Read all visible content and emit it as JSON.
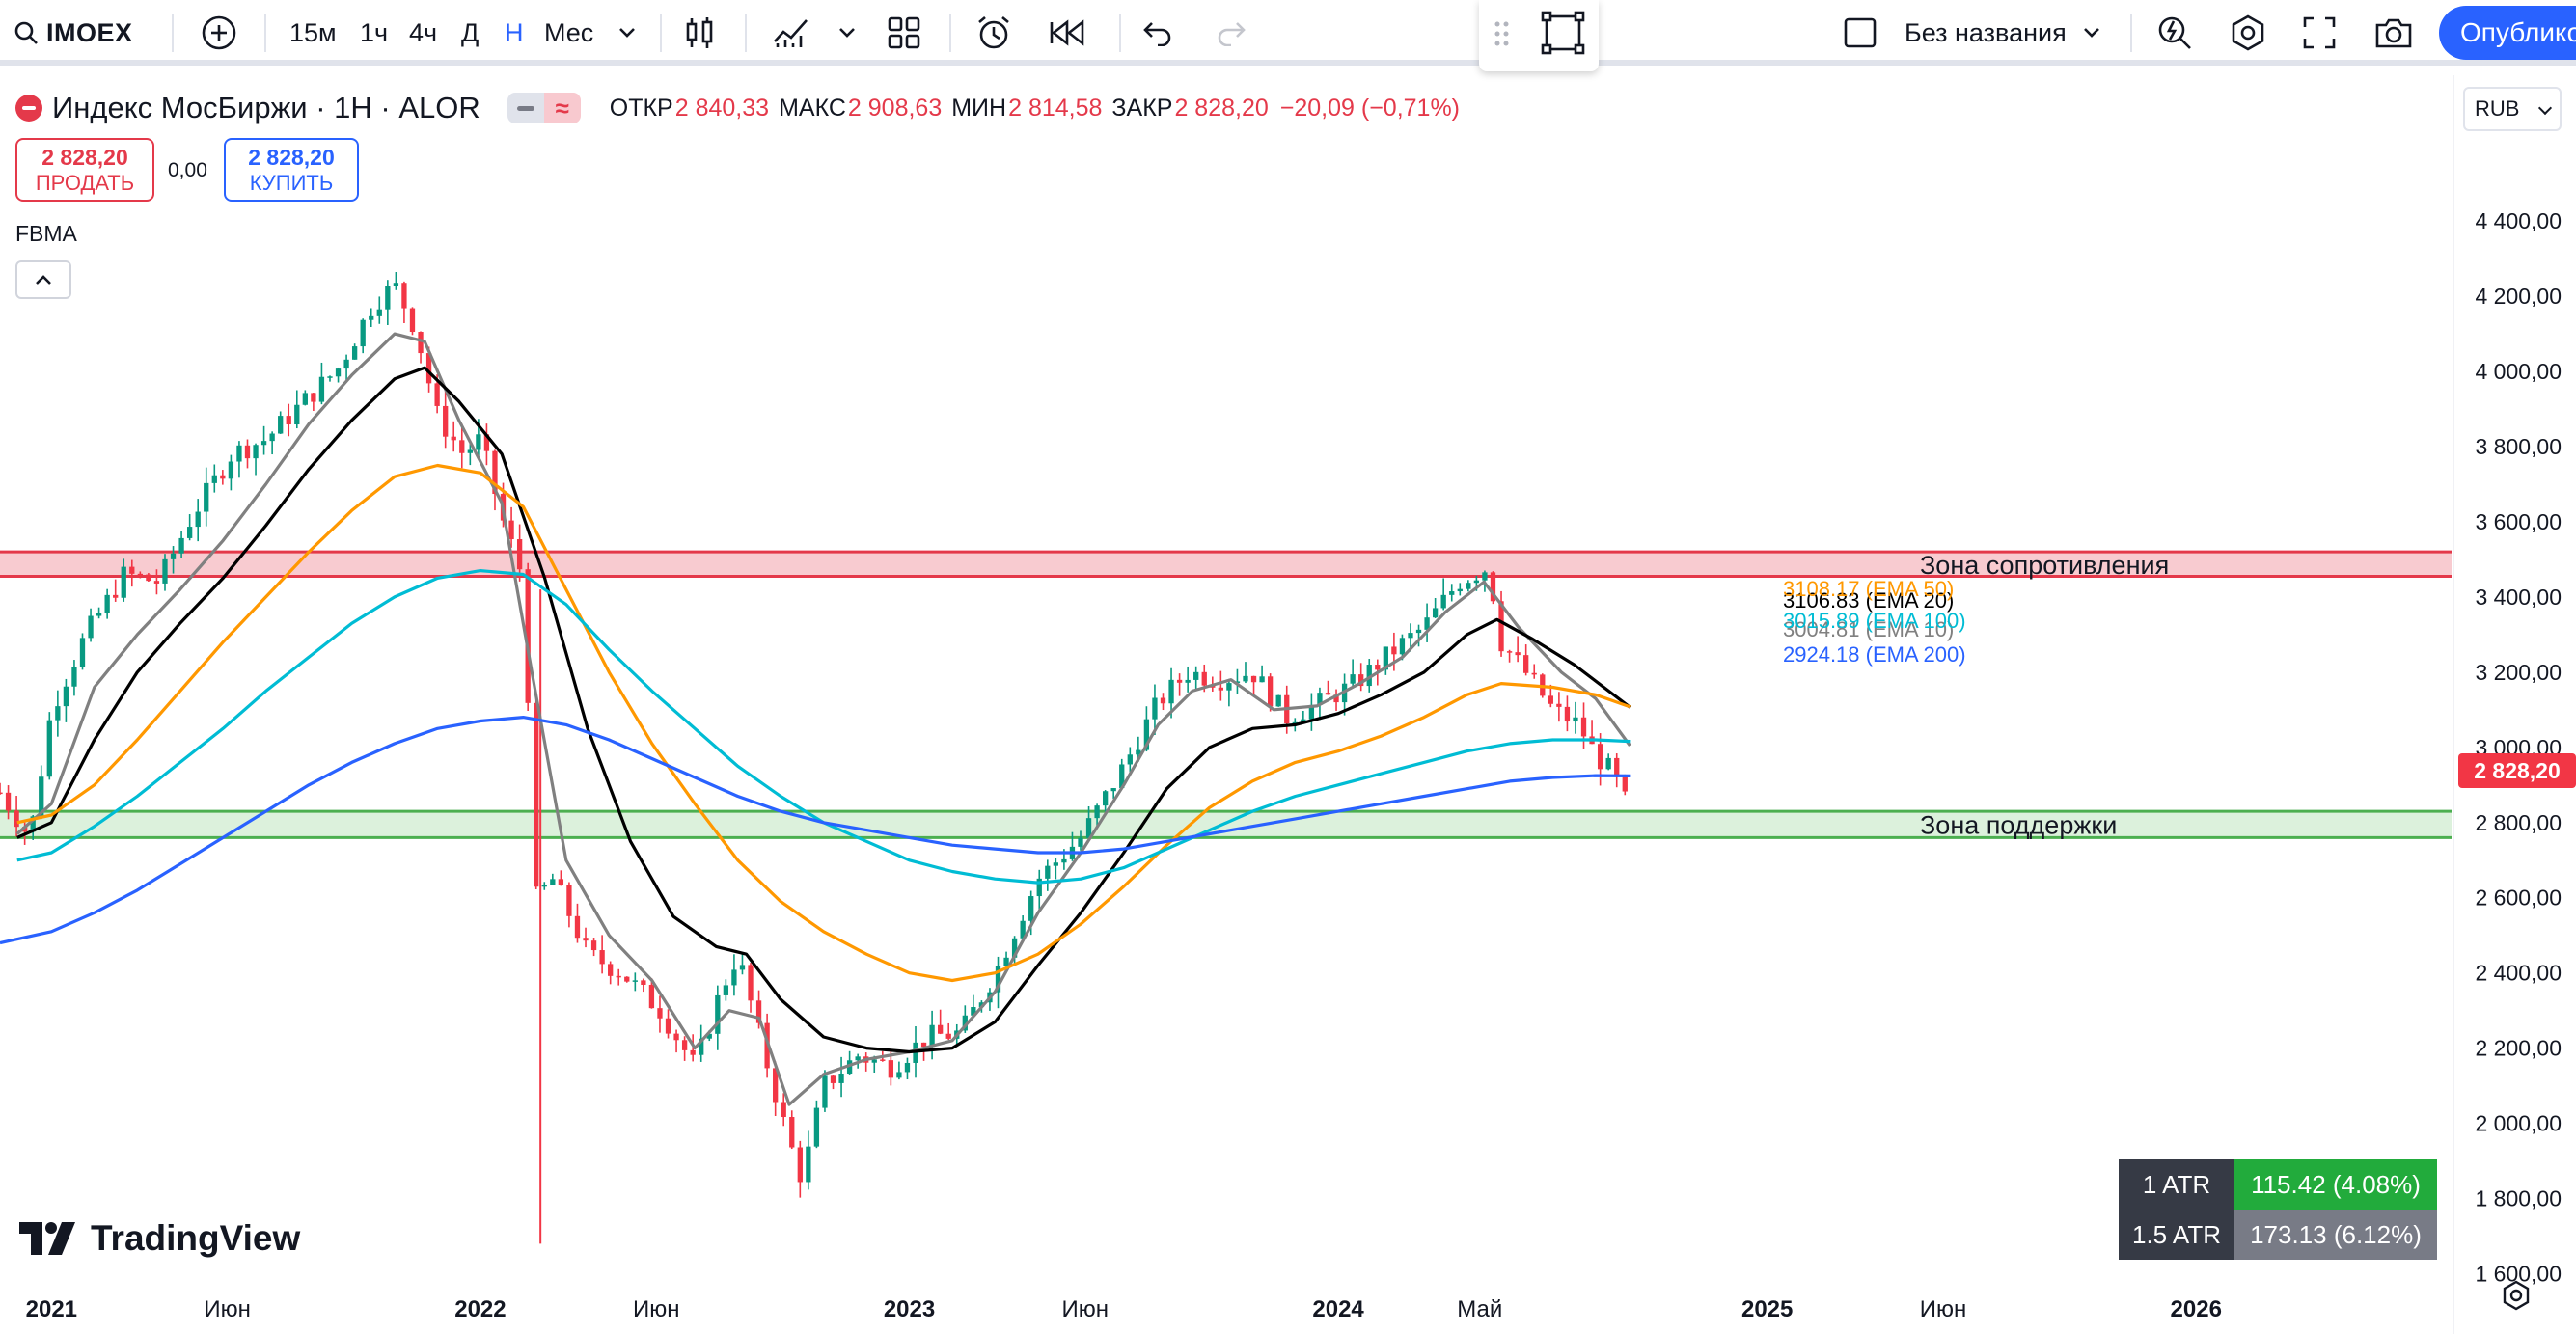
{
  "toolbar": {
    "symbol": "IMOEX",
    "intervals": [
      "15м",
      "1ч",
      "4ч",
      "Д",
      "Н",
      "Мес"
    ],
    "active_interval": "Н",
    "layout_name": "Без названия",
    "publish_label": "Опублико"
  },
  "legend": {
    "title": "Индекс МосБиржи · 1Н · ALOR",
    "open_label": "ОТКР",
    "open": "2 840,33",
    "high_label": "МАКС",
    "high": "2 908,63",
    "low_label": "МИН",
    "low": "2 814,58",
    "close_label": "ЗАКР",
    "close": "2 828,20",
    "change": "−20,09 (−0,71%)"
  },
  "trade": {
    "sell_price": "2 828,20",
    "sell_label": "ПРОДАТЬ",
    "spread": "0,00",
    "buy_price": "2 828,20",
    "buy_label": "КУПИТЬ"
  },
  "indicator_label": "FBMA",
  "currency": "RUB",
  "last_price_tag": "2 828,20",
  "atr": {
    "row1_label": "1 ATR",
    "row1_value": "115.42 (4.08%)",
    "row2_label": "1.5 ATR",
    "row2_value": "173.13 (6.12%)"
  },
  "brand": "TradingView",
  "colors": {
    "up": "#089981",
    "down": "#f23645",
    "ema10": "#808080",
    "ema20": "#000000",
    "ema50": "#ff9800",
    "ema100": "#00bcd4",
    "ema200": "#2962ff",
    "resistance_fill": "#f7c5cb",
    "resistance_line": "#e4394a",
    "support_fill": "#d8f0d8",
    "support_line": "#4caf50"
  },
  "chart_data": {
    "type": "line",
    "title": "Индекс МосБиржи · 1Н · ALOR",
    "y_range": [
      1550,
      4680
    ],
    "y_ticks": [
      1600,
      1800,
      2000,
      2200,
      2400,
      2600,
      2800,
      3000,
      3200,
      3400,
      3600,
      3800,
      4000,
      4200,
      4400
    ],
    "y_tick_labels": [
      "1 600,00",
      "1 800,00",
      "2 000,00",
      "2 200,00",
      "2 400,00",
      "2 600,00",
      "2 800,00",
      "3 000,00",
      "3 200,00",
      "3 400,00",
      "3 600,00",
      "3 800,00",
      "4 000,00",
      "4 200,00",
      "4 400,00"
    ],
    "x_range": [
      2020.88,
      2026.6
    ],
    "x_ticks": [
      {
        "t": 2021.0,
        "label": "2021",
        "major": true
      },
      {
        "t": 2021.41,
        "label": "Июн",
        "major": false
      },
      {
        "t": 2022.0,
        "label": "2022",
        "major": true
      },
      {
        "t": 2022.41,
        "label": "Июн",
        "major": false
      },
      {
        "t": 2023.0,
        "label": "2023",
        "major": true
      },
      {
        "t": 2023.41,
        "label": "Июн",
        "major": false
      },
      {
        "t": 2024.0,
        "label": "2024",
        "major": true
      },
      {
        "t": 2024.33,
        "label": "Май",
        "major": false
      },
      {
        "t": 2025.0,
        "label": "2025",
        "major": true
      },
      {
        "t": 2025.41,
        "label": "Июн",
        "major": false
      },
      {
        "t": 2026.0,
        "label": "2026",
        "major": true
      }
    ],
    "price_path": [
      [
        2020.88,
        2880
      ],
      [
        2020.95,
        2760
      ],
      [
        2021.0,
        3100
      ],
      [
        2021.08,
        3300
      ],
      [
        2021.17,
        3460
      ],
      [
        2021.25,
        3440
      ],
      [
        2021.33,
        3620
      ],
      [
        2021.42,
        3780
      ],
      [
        2021.5,
        3820
      ],
      [
        2021.58,
        3910
      ],
      [
        2021.67,
        4010
      ],
      [
        2021.75,
        4180
      ],
      [
        2021.8,
        4230
      ],
      [
        2021.85,
        4110
      ],
      [
        2021.9,
        3880
      ],
      [
        2021.96,
        3780
      ],
      [
        2022.0,
        3820
      ],
      [
        2022.05,
        3610
      ],
      [
        2022.1,
        3450
      ],
      [
        2022.13,
        2600
      ],
      [
        2022.17,
        2650
      ],
      [
        2022.25,
        2450
      ],
      [
        2022.33,
        2400
      ],
      [
        2022.42,
        2300
      ],
      [
        2022.5,
        2150
      ],
      [
        2022.56,
        2350
      ],
      [
        2022.6,
        2450
      ],
      [
        2022.67,
        2150
      ],
      [
        2022.72,
        1950
      ],
      [
        2022.75,
        1850
      ],
      [
        2022.8,
        2100
      ],
      [
        2022.88,
        2180
      ],
      [
        2022.96,
        2150
      ],
      [
        2023.04,
        2230
      ],
      [
        2023.12,
        2240
      ],
      [
        2023.2,
        2400
      ],
      [
        2023.3,
        2650
      ],
      [
        2023.4,
        2760
      ],
      [
        2023.5,
        2950
      ],
      [
        2023.58,
        3120
      ],
      [
        2023.65,
        3200
      ],
      [
        2023.72,
        3180
      ],
      [
        2023.8,
        3200
      ],
      [
        2023.88,
        3080
      ],
      [
        2023.96,
        3120
      ],
      [
        2024.04,
        3170
      ],
      [
        2024.12,
        3250
      ],
      [
        2024.2,
        3320
      ],
      [
        2024.28,
        3440
      ],
      [
        2024.35,
        3480
      ],
      [
        2024.38,
        3280
      ],
      [
        2024.45,
        3180
      ],
      [
        2024.5,
        3100
      ],
      [
        2024.56,
        3060
      ],
      [
        2024.6,
        2980
      ],
      [
        2024.64,
        2930
      ],
      [
        2024.68,
        2828.2
      ]
    ],
    "series": [
      {
        "name": "EMA 10",
        "color": "#808080",
        "last_value": 3004.81,
        "label": "3004.81 (EMA 10)",
        "points": [
          [
            2020.92,
            2770
          ],
          [
            2021.0,
            2850
          ],
          [
            2021.1,
            3160
          ],
          [
            2021.2,
            3300
          ],
          [
            2021.3,
            3420
          ],
          [
            2021.4,
            3550
          ],
          [
            2021.5,
            3700
          ],
          [
            2021.6,
            3860
          ],
          [
            2021.7,
            3990
          ],
          [
            2021.8,
            4100
          ],
          [
            2021.87,
            4080
          ],
          [
            2021.95,
            3870
          ],
          [
            2022.05,
            3650
          ],
          [
            2022.12,
            3200
          ],
          [
            2022.2,
            2700
          ],
          [
            2022.3,
            2500
          ],
          [
            2022.4,
            2380
          ],
          [
            2022.5,
            2200
          ],
          [
            2022.58,
            2300
          ],
          [
            2022.65,
            2280
          ],
          [
            2022.72,
            2050
          ],
          [
            2022.8,
            2130
          ],
          [
            2022.9,
            2170
          ],
          [
            2023.0,
            2190
          ],
          [
            2023.1,
            2220
          ],
          [
            2023.2,
            2350
          ],
          [
            2023.3,
            2560
          ],
          [
            2023.4,
            2720
          ],
          [
            2023.5,
            2900
          ],
          [
            2023.58,
            3060
          ],
          [
            2023.66,
            3150
          ],
          [
            2023.75,
            3180
          ],
          [
            2023.85,
            3100
          ],
          [
            2023.95,
            3110
          ],
          [
            2024.05,
            3170
          ],
          [
            2024.15,
            3240
          ],
          [
            2024.25,
            3360
          ],
          [
            2024.34,
            3440
          ],
          [
            2024.42,
            3320
          ],
          [
            2024.52,
            3200
          ],
          [
            2024.6,
            3130
          ],
          [
            2024.68,
            3004.81
          ]
        ]
      },
      {
        "name": "EMA 20",
        "color": "#000000",
        "last_value": 3106.83,
        "label": "3106.83 (EMA 20)",
        "points": [
          [
            2020.92,
            2760
          ],
          [
            2021.0,
            2800
          ],
          [
            2021.1,
            3020
          ],
          [
            2021.2,
            3200
          ],
          [
            2021.3,
            3330
          ],
          [
            2021.4,
            3450
          ],
          [
            2021.5,
            3590
          ],
          [
            2021.6,
            3740
          ],
          [
            2021.7,
            3870
          ],
          [
            2021.8,
            3980
          ],
          [
            2021.87,
            4010
          ],
          [
            2021.95,
            3920
          ],
          [
            2022.05,
            3780
          ],
          [
            2022.15,
            3450
          ],
          [
            2022.25,
            3050
          ],
          [
            2022.35,
            2750
          ],
          [
            2022.45,
            2550
          ],
          [
            2022.55,
            2470
          ],
          [
            2022.62,
            2450
          ],
          [
            2022.7,
            2330
          ],
          [
            2022.8,
            2230
          ],
          [
            2022.9,
            2200
          ],
          [
            2023.0,
            2190
          ],
          [
            2023.1,
            2200
          ],
          [
            2023.2,
            2270
          ],
          [
            2023.3,
            2420
          ],
          [
            2023.4,
            2560
          ],
          [
            2023.5,
            2720
          ],
          [
            2023.6,
            2890
          ],
          [
            2023.7,
            3000
          ],
          [
            2023.8,
            3050
          ],
          [
            2023.9,
            3060
          ],
          [
            2024.0,
            3090
          ],
          [
            2024.1,
            3140
          ],
          [
            2024.2,
            3200
          ],
          [
            2024.3,
            3300
          ],
          [
            2024.37,
            3340
          ],
          [
            2024.45,
            3290
          ],
          [
            2024.55,
            3220
          ],
          [
            2024.68,
            3106.83
          ]
        ]
      },
      {
        "name": "EMA 50",
        "color": "#ff9800",
        "last_value": 3108.17,
        "label": "3108.17 (EMA 50)",
        "points": [
          [
            2020.92,
            2800
          ],
          [
            2021.0,
            2820
          ],
          [
            2021.1,
            2900
          ],
          [
            2021.2,
            3020
          ],
          [
            2021.3,
            3150
          ],
          [
            2021.4,
            3280
          ],
          [
            2021.5,
            3400
          ],
          [
            2021.6,
            3520
          ],
          [
            2021.7,
            3630
          ],
          [
            2021.8,
            3720
          ],
          [
            2021.9,
            3750
          ],
          [
            2022.0,
            3730
          ],
          [
            2022.1,
            3640
          ],
          [
            2022.2,
            3420
          ],
          [
            2022.3,
            3200
          ],
          [
            2022.4,
            3010
          ],
          [
            2022.5,
            2850
          ],
          [
            2022.6,
            2700
          ],
          [
            2022.7,
            2590
          ],
          [
            2022.8,
            2510
          ],
          [
            2022.9,
            2450
          ],
          [
            2023.0,
            2400
          ],
          [
            2023.1,
            2380
          ],
          [
            2023.2,
            2400
          ],
          [
            2023.3,
            2450
          ],
          [
            2023.4,
            2530
          ],
          [
            2023.5,
            2630
          ],
          [
            2023.6,
            2740
          ],
          [
            2023.7,
            2840
          ],
          [
            2023.8,
            2910
          ],
          [
            2023.9,
            2960
          ],
          [
            2024.0,
            2990
          ],
          [
            2024.1,
            3030
          ],
          [
            2024.2,
            3080
          ],
          [
            2024.3,
            3140
          ],
          [
            2024.38,
            3170
          ],
          [
            2024.5,
            3160
          ],
          [
            2024.6,
            3140
          ],
          [
            2024.68,
            3108.17
          ]
        ]
      },
      {
        "name": "EMA 100",
        "color": "#00bcd4",
        "last_value": 3015.89,
        "label": "3015.89 (EMA 100)",
        "points": [
          [
            2020.92,
            2700
          ],
          [
            2021.0,
            2720
          ],
          [
            2021.1,
            2790
          ],
          [
            2021.2,
            2870
          ],
          [
            2021.3,
            2960
          ],
          [
            2021.4,
            3050
          ],
          [
            2021.5,
            3150
          ],
          [
            2021.6,
            3240
          ],
          [
            2021.7,
            3330
          ],
          [
            2021.8,
            3400
          ],
          [
            2021.9,
            3450
          ],
          [
            2022.0,
            3470
          ],
          [
            2022.1,
            3460
          ],
          [
            2022.2,
            3380
          ],
          [
            2022.3,
            3260
          ],
          [
            2022.4,
            3150
          ],
          [
            2022.5,
            3050
          ],
          [
            2022.6,
            2950
          ],
          [
            2022.7,
            2870
          ],
          [
            2022.8,
            2800
          ],
          [
            2022.9,
            2750
          ],
          [
            2023.0,
            2700
          ],
          [
            2023.1,
            2670
          ],
          [
            2023.2,
            2650
          ],
          [
            2023.3,
            2640
          ],
          [
            2023.4,
            2650
          ],
          [
            2023.5,
            2680
          ],
          [
            2023.6,
            2730
          ],
          [
            2023.7,
            2780
          ],
          [
            2023.8,
            2830
          ],
          [
            2023.9,
            2870
          ],
          [
            2024.0,
            2900
          ],
          [
            2024.1,
            2930
          ],
          [
            2024.2,
            2960
          ],
          [
            2024.3,
            2990
          ],
          [
            2024.4,
            3010
          ],
          [
            2024.5,
            3020
          ],
          [
            2024.6,
            3020
          ],
          [
            2024.68,
            3015.89
          ]
        ]
      },
      {
        "name": "EMA 200",
        "color": "#2962ff",
        "last_value": 2924.18,
        "label": "2924.18 (EMA 200)",
        "points": [
          [
            2020.88,
            2480
          ],
          [
            2021.0,
            2510
          ],
          [
            2021.1,
            2560
          ],
          [
            2021.2,
            2620
          ],
          [
            2021.3,
            2690
          ],
          [
            2021.4,
            2760
          ],
          [
            2021.5,
            2830
          ],
          [
            2021.6,
            2900
          ],
          [
            2021.7,
            2960
          ],
          [
            2021.8,
            3010
          ],
          [
            2021.9,
            3050
          ],
          [
            2022.0,
            3070
          ],
          [
            2022.1,
            3080
          ],
          [
            2022.2,
            3060
          ],
          [
            2022.3,
            3020
          ],
          [
            2022.4,
            2970
          ],
          [
            2022.5,
            2920
          ],
          [
            2022.6,
            2870
          ],
          [
            2022.7,
            2830
          ],
          [
            2022.8,
            2800
          ],
          [
            2022.9,
            2780
          ],
          [
            2023.0,
            2760
          ],
          [
            2023.1,
            2740
          ],
          [
            2023.2,
            2730
          ],
          [
            2023.3,
            2720
          ],
          [
            2023.4,
            2720
          ],
          [
            2023.5,
            2730
          ],
          [
            2023.6,
            2750
          ],
          [
            2023.7,
            2770
          ],
          [
            2023.8,
            2790
          ],
          [
            2023.9,
            2810
          ],
          [
            2024.0,
            2830
          ],
          [
            2024.1,
            2850
          ],
          [
            2024.2,
            2870
          ],
          [
            2024.3,
            2890
          ],
          [
            2024.4,
            2910
          ],
          [
            2024.5,
            2920
          ],
          [
            2024.6,
            2925
          ],
          [
            2024.68,
            2924.18
          ]
        ]
      }
    ],
    "zones": [
      {
        "label": "Зона сопротивления",
        "from": 3455,
        "to": 3520,
        "kind": "resistance"
      },
      {
        "label": "Зона поддержки",
        "from": 2760,
        "to": 2830,
        "kind": "support"
      }
    ],
    "grid": true,
    "last_close": 2828.2
  }
}
